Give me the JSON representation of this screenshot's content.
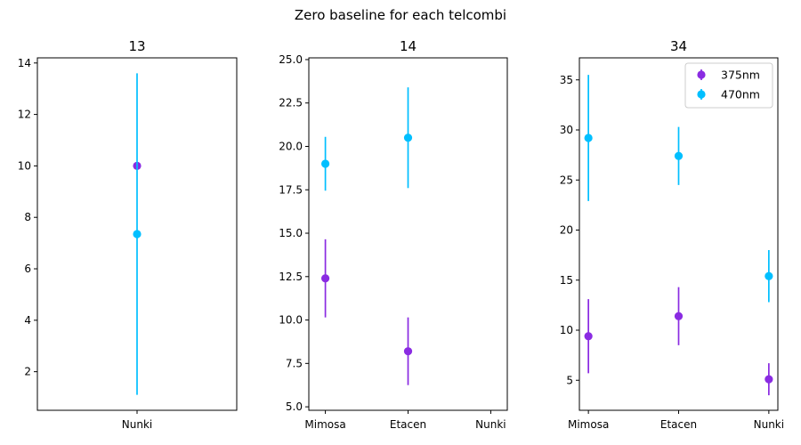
{
  "figure": {
    "suptitle": "Zero baseline for each telcombi"
  },
  "colors": {
    "s375": "#8a2be2",
    "s470": "#00bfff"
  },
  "chart_data": [
    {
      "type": "errorbar",
      "title": "13",
      "categories": [
        "Nunki"
      ],
      "ylim": [
        0.5,
        14.2
      ],
      "yticks": [
        2,
        4,
        6,
        8,
        10,
        12,
        14
      ],
      "ytick_labels": [
        "2",
        "4",
        "6",
        "8",
        "10",
        "12",
        "14"
      ],
      "legend": false,
      "series": [
        {
          "name": "375nm",
          "color": "#8a2be2",
          "points": [
            {
              "x": "Nunki",
              "y": 10.0,
              "err": 0
            }
          ]
        },
        {
          "name": "470nm",
          "color": "#00bfff",
          "points": [
            {
              "x": "Nunki",
              "y": 7.35,
              "err": 6.25
            }
          ]
        }
      ]
    },
    {
      "type": "errorbar",
      "title": "14",
      "categories": [
        "Mimosa",
        "Etacen",
        "Nunki"
      ],
      "ylim": [
        4.8,
        25.1
      ],
      "yticks": [
        5.0,
        7.5,
        10.0,
        12.5,
        15.0,
        17.5,
        20.0,
        22.5,
        25.0
      ],
      "ytick_labels": [
        "5.0",
        "7.5",
        "10.0",
        "12.5",
        "15.0",
        "17.5",
        "20.0",
        "22.5",
        "25.0"
      ],
      "legend": false,
      "series": [
        {
          "name": "375nm",
          "color": "#8a2be2",
          "points": [
            {
              "x": "Mimosa",
              "y": 12.4,
              "err": 2.25
            },
            {
              "x": "Etacen",
              "y": 8.2,
              "err": 1.95
            }
          ]
        },
        {
          "name": "470nm",
          "color": "#00bfff",
          "points": [
            {
              "x": "Mimosa",
              "y": 19.0,
              "err": 1.55
            },
            {
              "x": "Etacen",
              "y": 20.5,
              "err": 2.9
            }
          ]
        }
      ]
    },
    {
      "type": "errorbar",
      "title": "34",
      "categories": [
        "Mimosa",
        "Etacen",
        "Nunki"
      ],
      "ylim": [
        2.0,
        37.2
      ],
      "yticks": [
        5,
        10,
        15,
        20,
        25,
        30,
        35
      ],
      "ytick_labels": [
        "5",
        "10",
        "15",
        "20",
        "25",
        "30",
        "35"
      ],
      "legend": true,
      "legend_position": "upper-right",
      "series": [
        {
          "name": "375nm",
          "color": "#8a2be2",
          "points": [
            {
              "x": "Mimosa",
              "y": 9.4,
              "err": 3.7
            },
            {
              "x": "Etacen",
              "y": 11.4,
              "err": 2.9
            },
            {
              "x": "Nunki",
              "y": 5.1,
              "err": 1.6
            }
          ]
        },
        {
          "name": "470nm",
          "color": "#00bfff",
          "points": [
            {
              "x": "Mimosa",
              "y": 29.2,
              "err": 6.3
            },
            {
              "x": "Etacen",
              "y": 27.4,
              "err": 2.9
            },
            {
              "x": "Nunki",
              "y": 15.4,
              "err": 2.6
            }
          ]
        }
      ]
    }
  ]
}
